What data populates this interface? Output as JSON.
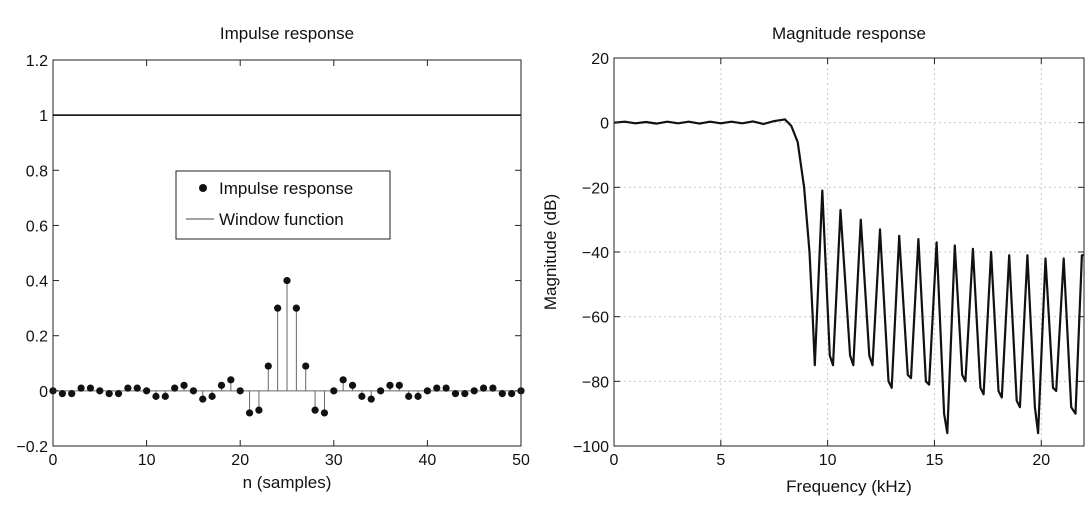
{
  "chart_data": [
    {
      "type": "stem",
      "title": "Impulse response",
      "xlabel": "n (samples)",
      "ylabel": "",
      "xlim": [
        0,
        50
      ],
      "ylim": [
        -0.2,
        1.2
      ],
      "xticks": [
        0,
        10,
        20,
        30,
        40,
        50
      ],
      "yticks": [
        -0.2,
        0,
        0.2,
        0.4,
        0.6,
        0.8,
        1,
        1.2
      ],
      "ytick_labels": [
        "−0.2",
        "0",
        "0.2",
        "0.4",
        "0.6",
        "0.8",
        "1",
        "1.2"
      ],
      "grid": false,
      "legend": {
        "position": "center-left",
        "entries": [
          "Impulse response",
          "Window function"
        ]
      },
      "series": [
        {
          "name": "Impulse response",
          "kind": "stem",
          "x": [
            0,
            1,
            2,
            3,
            4,
            5,
            6,
            7,
            8,
            9,
            10,
            11,
            12,
            13,
            14,
            15,
            16,
            17,
            18,
            19,
            20,
            21,
            22,
            23,
            24,
            25,
            26,
            27,
            28,
            29,
            30,
            31,
            32,
            33,
            34,
            35,
            36,
            37,
            38,
            39,
            40,
            41,
            42,
            43,
            44,
            45,
            46,
            47,
            48,
            49,
            50
          ],
          "y": [
            0,
            -0.01,
            -0.01,
            0.01,
            0.01,
            0,
            -0.01,
            -0.01,
            0.01,
            0.01,
            0,
            -0.02,
            -0.02,
            0.01,
            0.02,
            0,
            -0.03,
            -0.02,
            0.02,
            0.04,
            0,
            -0.08,
            -0.07,
            0.09,
            0.3,
            0.4,
            0.3,
            0.09,
            -0.07,
            -0.08,
            0,
            0.04,
            0.02,
            -0.02,
            -0.03,
            0,
            0.02,
            0.02,
            -0.02,
            -0.02,
            0,
            0.01,
            0.01,
            -0.01,
            -0.01,
            0,
            0.01,
            0.01,
            -0.01,
            -0.01,
            0
          ]
        },
        {
          "name": "Window function",
          "kind": "line",
          "x": [
            0,
            50
          ],
          "y": [
            1,
            1
          ]
        }
      ]
    },
    {
      "type": "line",
      "title": "Magnitude response",
      "xlabel": "Frequency (kHz)",
      "ylabel": "Magnitude (dB)",
      "xlim": [
        0,
        22
      ],
      "ylim": [
        -100,
        20
      ],
      "xticks": [
        0,
        5,
        10,
        15,
        20
      ],
      "yticks": [
        -100,
        -80,
        -60,
        -40,
        -20,
        0,
        20
      ],
      "ytick_labels": [
        "−100",
        "−80",
        "−60",
        "−40",
        "−20",
        "0",
        "20"
      ],
      "grid": true,
      "series": [
        {
          "x": [
            0,
            0.5,
            1,
            1.5,
            2,
            2.5,
            3,
            3.5,
            4,
            4.5,
            5,
            5.5,
            6,
            6.5,
            7,
            7.5,
            8,
            8.3,
            8.6,
            8.9,
            9.15,
            9.3,
            9.4,
            9.75,
            10.1,
            10.25,
            10.6,
            11.05,
            11.2,
            11.55,
            11.95,
            12.1,
            12.45,
            12.85,
            13.0,
            13.35,
            13.75,
            13.9,
            14.25,
            14.6,
            14.75,
            15.1,
            15.45,
            15.6,
            15.95,
            16.3,
            16.45,
            16.8,
            17.15,
            17.3,
            17.65,
            18.0,
            18.15,
            18.5,
            18.85,
            19.0,
            19.35,
            19.7,
            19.85,
            20.2,
            20.55,
            20.7,
            21.05,
            21.4,
            21.6,
            21.9,
            22
          ],
          "y": [
            0,
            0.3,
            -0.2,
            0.2,
            -0.3,
            0.3,
            -0.2,
            0.3,
            -0.3,
            0.3,
            -0.2,
            0.3,
            -0.2,
            0.4,
            -0.4,
            0.5,
            1,
            -1,
            -6,
            -20,
            -40,
            -60,
            -75,
            -21,
            -72,
            -75,
            -27,
            -72,
            -75,
            -30,
            -72,
            -75,
            -33,
            -80,
            -82,
            -35,
            -78,
            -79,
            -36,
            -80,
            -81,
            -37,
            -90,
            -96,
            -38,
            -78,
            -80,
            -39,
            -82,
            -84,
            -40,
            -83,
            -85,
            -41,
            -86,
            -88,
            -41,
            -88,
            -96,
            -42,
            -82,
            -83,
            -42,
            -88,
            -90,
            -41,
            -41
          ]
        }
      ]
    }
  ]
}
